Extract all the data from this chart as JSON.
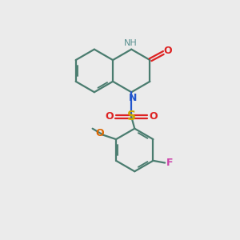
{
  "bg_color": "#ebebeb",
  "bond_color": "#4a7c6f",
  "N_color": "#2255cc",
  "NH_color": "#5a9090",
  "O_color": "#dd2222",
  "S_color": "#ccaa00",
  "F_color": "#cc44aa",
  "OMe_color": "#dd6600",
  "bond_lw": 1.6,
  "ring_r": 1.0,
  "xlim": [
    0,
    10
  ],
  "ylim": [
    0,
    11
  ]
}
